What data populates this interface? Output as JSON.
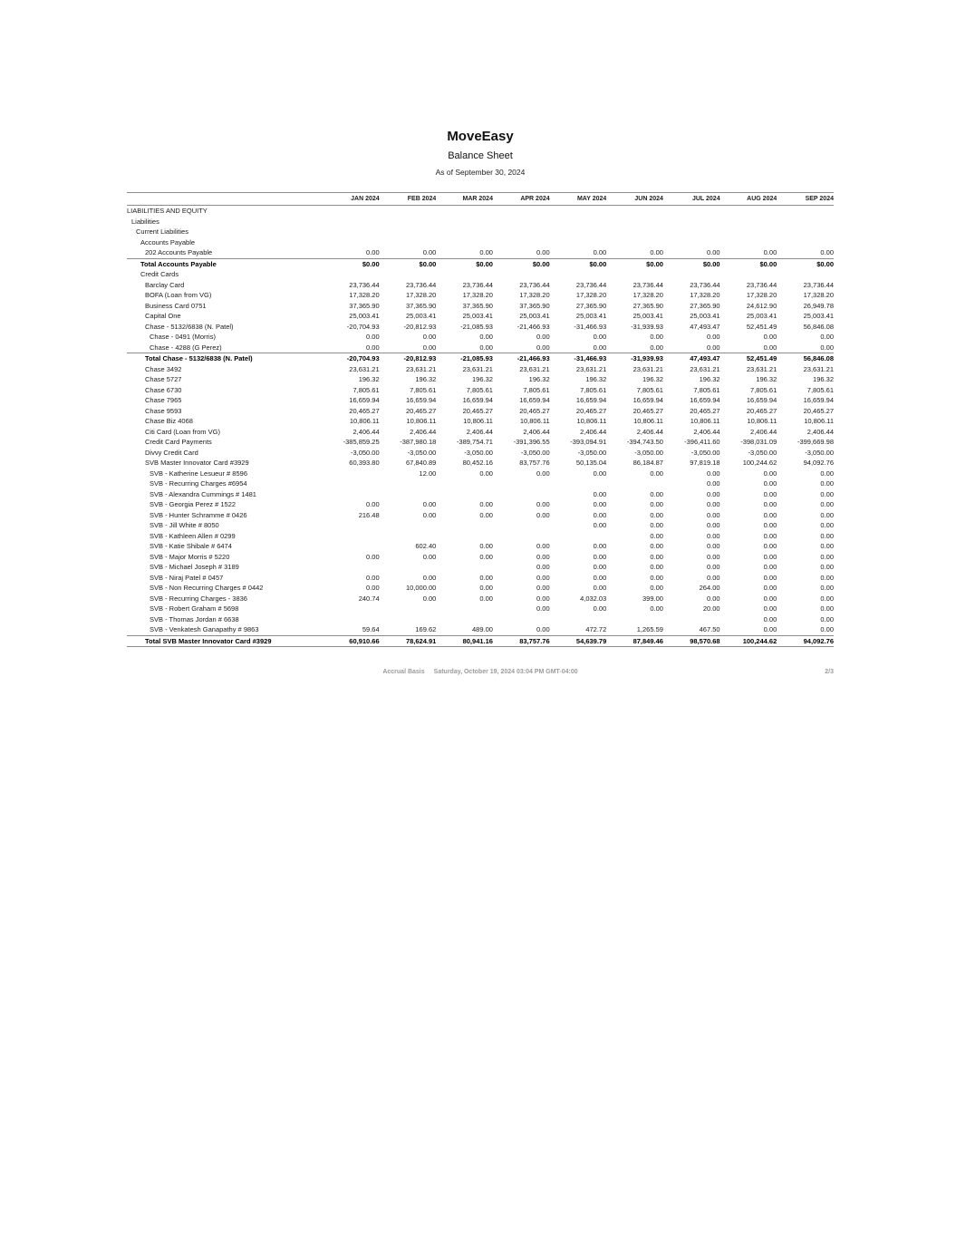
{
  "report": {
    "company": "MoveEasy",
    "title": "Balance Sheet",
    "as_of": "As of September 30, 2024",
    "footer": {
      "basis": "Accrual Basis",
      "generated": "Saturday, October 19, 2024 03:04 PM GMT-04:00",
      "page": "2/3"
    }
  },
  "table": {
    "columns": [
      "JAN 2024",
      "FEB 2024",
      "MAR 2024",
      "APR 2024",
      "MAY 2024",
      "JUN 2024",
      "JUL 2024",
      "AUG 2024",
      "SEP 2024"
    ],
    "rows": [
      {
        "label": "LIABILITIES AND EQUITY",
        "indent": 0,
        "type": "section",
        "values": [
          "",
          "",
          "",
          "",
          "",
          "",
          "",
          "",
          ""
        ]
      },
      {
        "label": "Liabilities",
        "indent": 1,
        "type": "section",
        "values": [
          "",
          "",
          "",
          "",
          "",
          "",
          "",
          "",
          ""
        ]
      },
      {
        "label": "Current Liabilities",
        "indent": 2,
        "type": "section",
        "values": [
          "",
          "",
          "",
          "",
          "",
          "",
          "",
          "",
          ""
        ]
      },
      {
        "label": "Accounts Payable",
        "indent": 3,
        "type": "section",
        "values": [
          "",
          "",
          "",
          "",
          "",
          "",
          "",
          "",
          ""
        ]
      },
      {
        "label": "202 Accounts Payable",
        "indent": 4,
        "type": "data",
        "values": [
          "0.00",
          "0.00",
          "0.00",
          "0.00",
          "0.00",
          "0.00",
          "0.00",
          "0.00",
          "0.00"
        ]
      },
      {
        "label": "Total Accounts Payable",
        "indent": 3,
        "type": "total",
        "values": [
          "$0.00",
          "$0.00",
          "$0.00",
          "$0.00",
          "$0.00",
          "$0.00",
          "$0.00",
          "$0.00",
          "$0.00"
        ]
      },
      {
        "label": "Credit Cards",
        "indent": 3,
        "type": "section",
        "values": [
          "",
          "",
          "",
          "",
          "",
          "",
          "",
          "",
          ""
        ]
      },
      {
        "label": "Barclay Card",
        "indent": 4,
        "type": "data",
        "values": [
          "23,736.44",
          "23,736.44",
          "23,736.44",
          "23,736.44",
          "23,736.44",
          "23,736.44",
          "23,736.44",
          "23,736.44",
          "23,736.44"
        ]
      },
      {
        "label": "BOFA (Loan from VG)",
        "indent": 4,
        "type": "data",
        "values": [
          "17,328.20",
          "17,328.20",
          "17,328.20",
          "17,328.20",
          "17,328.20",
          "17,328.20",
          "17,328.20",
          "17,328.20",
          "17,328.20"
        ]
      },
      {
        "label": "Business Card 0751",
        "indent": 4,
        "type": "data",
        "values": [
          "37,365.90",
          "37,365.90",
          "37,365.90",
          "37,365.90",
          "27,365.90",
          "27,365.90",
          "27,365.90",
          "24,612.90",
          "26,949.78"
        ]
      },
      {
        "label": "Capital One",
        "indent": 4,
        "type": "data",
        "values": [
          "25,003.41",
          "25,003.41",
          "25,003.41",
          "25,003.41",
          "25,003.41",
          "25,003.41",
          "25,003.41",
          "25,003.41",
          "25,003.41"
        ]
      },
      {
        "label": "Chase - 5132/6838 (N. Patel)",
        "indent": 4,
        "type": "data",
        "values": [
          "-20,704.93",
          "-20,812.93",
          "-21,085.93",
          "-21,466.93",
          "-31,466.93",
          "-31,939.93",
          "47,493.47",
          "52,451.49",
          "56,846.08"
        ]
      },
      {
        "label": "Chase - 0491 (Morris)",
        "indent": 5,
        "type": "data",
        "values": [
          "0.00",
          "0.00",
          "0.00",
          "0.00",
          "0.00",
          "0.00",
          "0.00",
          "0.00",
          "0.00"
        ]
      },
      {
        "label": "Chase - 4288 (G Perez)",
        "indent": 5,
        "type": "data",
        "values": [
          "0.00",
          "0.00",
          "0.00",
          "0.00",
          "0.00",
          "0.00",
          "0.00",
          "0.00",
          "0.00"
        ]
      },
      {
        "label": "Total Chase - 5132/6838 (N. Patel)",
        "indent": 4,
        "type": "total",
        "values": [
          "-20,704.93",
          "-20,812.93",
          "-21,085.93",
          "-21,466.93",
          "-31,466.93",
          "-31,939.93",
          "47,493.47",
          "52,451.49",
          "56,846.08"
        ]
      },
      {
        "label": "Chase 3492",
        "indent": 4,
        "type": "data",
        "values": [
          "23,631.21",
          "23,631.21",
          "23,631.21",
          "23,631.21",
          "23,631.21",
          "23,631.21",
          "23,631.21",
          "23,631.21",
          "23,631.21"
        ]
      },
      {
        "label": "Chase 5727",
        "indent": 4,
        "type": "data",
        "values": [
          "196.32",
          "196.32",
          "196.32",
          "196.32",
          "196.32",
          "196.32",
          "196.32",
          "196.32",
          "196.32"
        ]
      },
      {
        "label": "Chase 6730",
        "indent": 4,
        "type": "data",
        "values": [
          "7,805.61",
          "7,805.61",
          "7,805.61",
          "7,805.61",
          "7,805.61",
          "7,805.61",
          "7,805.61",
          "7,805.61",
          "7,805.61"
        ]
      },
      {
        "label": "Chase 7965",
        "indent": 4,
        "type": "data",
        "values": [
          "16,659.94",
          "16,659.94",
          "16,659.94",
          "16,659.94",
          "16,659.94",
          "16,659.94",
          "16,659.94",
          "16,659.94",
          "16,659.94"
        ]
      },
      {
        "label": "Chase 9593",
        "indent": 4,
        "type": "data",
        "values": [
          "20,465.27",
          "20,465.27",
          "20,465.27",
          "20,465.27",
          "20,465.27",
          "20,465.27",
          "20,465.27",
          "20,465.27",
          "20,465.27"
        ]
      },
      {
        "label": "Chase Biz 4068",
        "indent": 4,
        "type": "data",
        "values": [
          "10,806.11",
          "10,806.11",
          "10,806.11",
          "10,806.11",
          "10,806.11",
          "10,806.11",
          "10,806.11",
          "10,806.11",
          "10,806.11"
        ]
      },
      {
        "label": "Citi Card (Loan from VG)",
        "indent": 4,
        "type": "data",
        "values": [
          "2,406.44",
          "2,406.44",
          "2,406.44",
          "2,406.44",
          "2,406.44",
          "2,406.44",
          "2,406.44",
          "2,406.44",
          "2,406.44"
        ]
      },
      {
        "label": "Credit Card Payments",
        "indent": 4,
        "type": "data",
        "values": [
          "-385,859.25",
          "-387,980.18",
          "-389,754.71",
          "-391,396.55",
          "-393,094.91",
          "-394,743.50",
          "-396,411.60",
          "-398,031.09",
          "-399,669.98"
        ]
      },
      {
        "label": "Divvy Credit Card",
        "indent": 4,
        "type": "data",
        "values": [
          "-3,050.00",
          "-3,050.00",
          "-3,050.00",
          "-3,050.00",
          "-3,050.00",
          "-3,050.00",
          "-3,050.00",
          "-3,050.00",
          "-3,050.00"
        ]
      },
      {
        "label": "SVB Master Innovator Card #3929",
        "indent": 4,
        "type": "data",
        "values": [
          "60,393.80",
          "67,840.89",
          "80,452.16",
          "83,757.76",
          "50,135.04",
          "86,184.87",
          "97,819.18",
          "100,244.62",
          "94,092.76"
        ]
      },
      {
        "label": "SVB - Katherine Lesueur # 8596",
        "indent": 5,
        "type": "data",
        "values": [
          "",
          "12.00",
          "0.00",
          "0.00",
          "0.00",
          "0.00",
          "0.00",
          "0.00",
          "0.00"
        ]
      },
      {
        "label": "SVB - Recurring Charges #6954",
        "indent": 5,
        "type": "data",
        "values": [
          "",
          "",
          "",
          "",
          "",
          "",
          "0.00",
          "0.00",
          "0.00"
        ]
      },
      {
        "label": "SVB - Alexandra Cummings # 1481",
        "indent": 5,
        "type": "data",
        "values": [
          "",
          "",
          "",
          "",
          "0.00",
          "0.00",
          "0.00",
          "0.00",
          "0.00"
        ]
      },
      {
        "label": "SVB - Georgia Perez # 1522",
        "indent": 5,
        "type": "data",
        "values": [
          "0.00",
          "0.00",
          "0.00",
          "0.00",
          "0.00",
          "0.00",
          "0.00",
          "0.00",
          "0.00"
        ]
      },
      {
        "label": "SVB - Hunter Schramme # 0426",
        "indent": 5,
        "type": "data",
        "values": [
          "216.48",
          "0.00",
          "0.00",
          "0.00",
          "0.00",
          "0.00",
          "0.00",
          "0.00",
          "0.00"
        ]
      },
      {
        "label": "SVB - Jill White # 8050",
        "indent": 5,
        "type": "data",
        "values": [
          "",
          "",
          "",
          "",
          "0.00",
          "0.00",
          "0.00",
          "0.00",
          "0.00"
        ]
      },
      {
        "label": "SVB - Kathleen Allen # 0299",
        "indent": 5,
        "type": "data",
        "values": [
          "",
          "",
          "",
          "",
          "",
          "0.00",
          "0.00",
          "0.00",
          "0.00"
        ]
      },
      {
        "label": "SVB - Katie Shibale # 6474",
        "indent": 5,
        "type": "data",
        "values": [
          "",
          "602.40",
          "0.00",
          "0.00",
          "0.00",
          "0.00",
          "0.00",
          "0.00",
          "0.00"
        ]
      },
      {
        "label": "SVB - Major Morris # 5220",
        "indent": 5,
        "type": "data",
        "values": [
          "0.00",
          "0.00",
          "0.00",
          "0.00",
          "0.00",
          "0.00",
          "0.00",
          "0.00",
          "0.00"
        ]
      },
      {
        "label": "SVB - Michael Joseph # 3189",
        "indent": 5,
        "type": "data",
        "values": [
          "",
          "",
          "",
          "0.00",
          "0.00",
          "0.00",
          "0.00",
          "0.00",
          "0.00"
        ]
      },
      {
        "label": "SVB - Niraj Patel # 0457",
        "indent": 5,
        "type": "data",
        "values": [
          "0.00",
          "0.00",
          "0.00",
          "0.00",
          "0.00",
          "0.00",
          "0.00",
          "0.00",
          "0.00"
        ]
      },
      {
        "label": "SVB - Non Recurring Charges # 0442",
        "indent": 5,
        "type": "data",
        "values": [
          "0.00",
          "10,000.00",
          "0.00",
          "0.00",
          "0.00",
          "0.00",
          "264.00",
          "0.00",
          "0.00"
        ]
      },
      {
        "label": "SVB - Recurring Charges - 3836",
        "indent": 5,
        "type": "data",
        "values": [
          "240.74",
          "0.00",
          "0.00",
          "0.00",
          "4,032.03",
          "399.00",
          "0.00",
          "0.00",
          "0.00"
        ]
      },
      {
        "label": "SVB - Robert Graham # 5698",
        "indent": 5,
        "type": "data",
        "values": [
          "",
          "",
          "",
          "0.00",
          "0.00",
          "0.00",
          "20.00",
          "0.00",
          "0.00"
        ]
      },
      {
        "label": "SVB - Thomas Jordan # 6638",
        "indent": 5,
        "type": "data",
        "values": [
          "",
          "",
          "",
          "",
          "",
          "",
          "",
          "0.00",
          "0.00"
        ]
      },
      {
        "label": "SVB - Venkatesh Ganapathy # 9863",
        "indent": 5,
        "type": "data",
        "values": [
          "59.64",
          "169.62",
          "489.00",
          "0.00",
          "472.72",
          "1,265.59",
          "467.50",
          "0.00",
          "0.00"
        ]
      },
      {
        "label": "Total SVB Master Innovator Card #3929",
        "indent": 4,
        "type": "grandtotal",
        "values": [
          "60,910.66",
          "78,624.91",
          "80,941.16",
          "83,757.76",
          "54,639.79",
          "87,849.46",
          "98,570.68",
          "100,244.62",
          "94,092.76"
        ]
      }
    ]
  }
}
